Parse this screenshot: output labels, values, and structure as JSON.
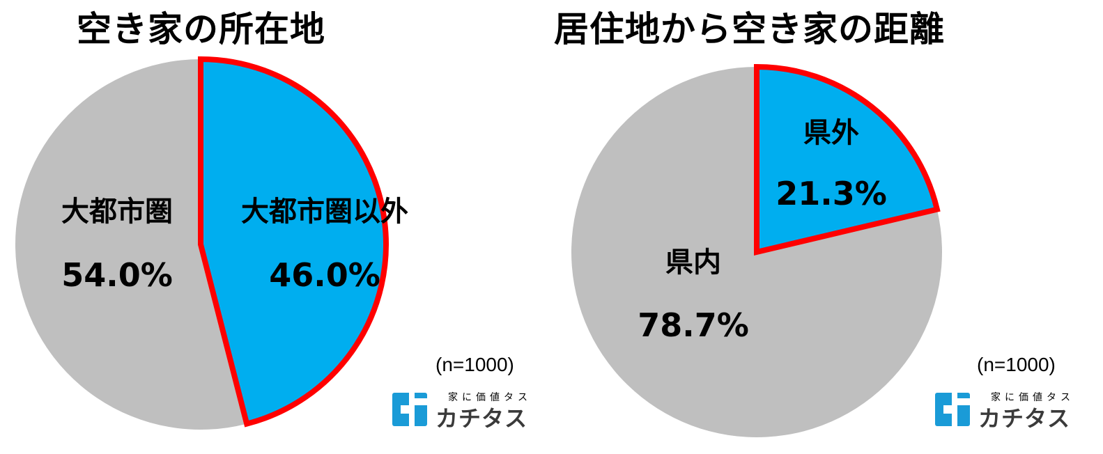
{
  "chart_data": [
    {
      "type": "pie",
      "title": "空き家の所在地",
      "slices": [
        {
          "label": "大都市圏以外",
          "value": 46.0,
          "value_label": "46.0%",
          "color": "#00AEEF",
          "highlight": true
        },
        {
          "label": "大都市圏",
          "value": 54.0,
          "value_label": "54.0%",
          "color": "#BFBFBF",
          "highlight": false
        }
      ],
      "note": "(n=1000)"
    },
    {
      "type": "pie",
      "title": "居住地から空き家の距離",
      "slices": [
        {
          "label": "県外",
          "value": 21.3,
          "value_label": "21.3%",
          "color": "#00AEEF",
          "highlight": true
        },
        {
          "label": "県内",
          "value": 78.7,
          "value_label": "78.7%",
          "color": "#BFBFBF",
          "highlight": false
        }
      ],
      "note": "(n=1000)"
    }
  ],
  "highlight_color": "#FF0000",
  "logo": {
    "tagline": "家に価値タス",
    "name": "カチタス",
    "color": "#1A9BD7"
  }
}
